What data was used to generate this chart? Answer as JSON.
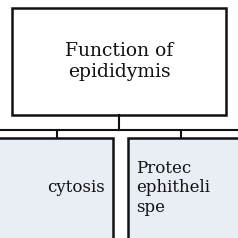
{
  "title_box_text": "Function of\nepididymis",
  "left_box_text": "cytosis",
  "right_box_text": "Protec\nephitheli\nspe",
  "bg_color": "#ffffff",
  "box_bg_top": "#ffffff",
  "box_bg_child": "#e8eef4",
  "box_edge_color": "#111111",
  "text_color": "#111111",
  "line_color": "#111111",
  "font_size_title": 13.5,
  "font_size_child": 12,
  "fig_width": 2.38,
  "fig_height": 2.38,
  "dpi": 100
}
